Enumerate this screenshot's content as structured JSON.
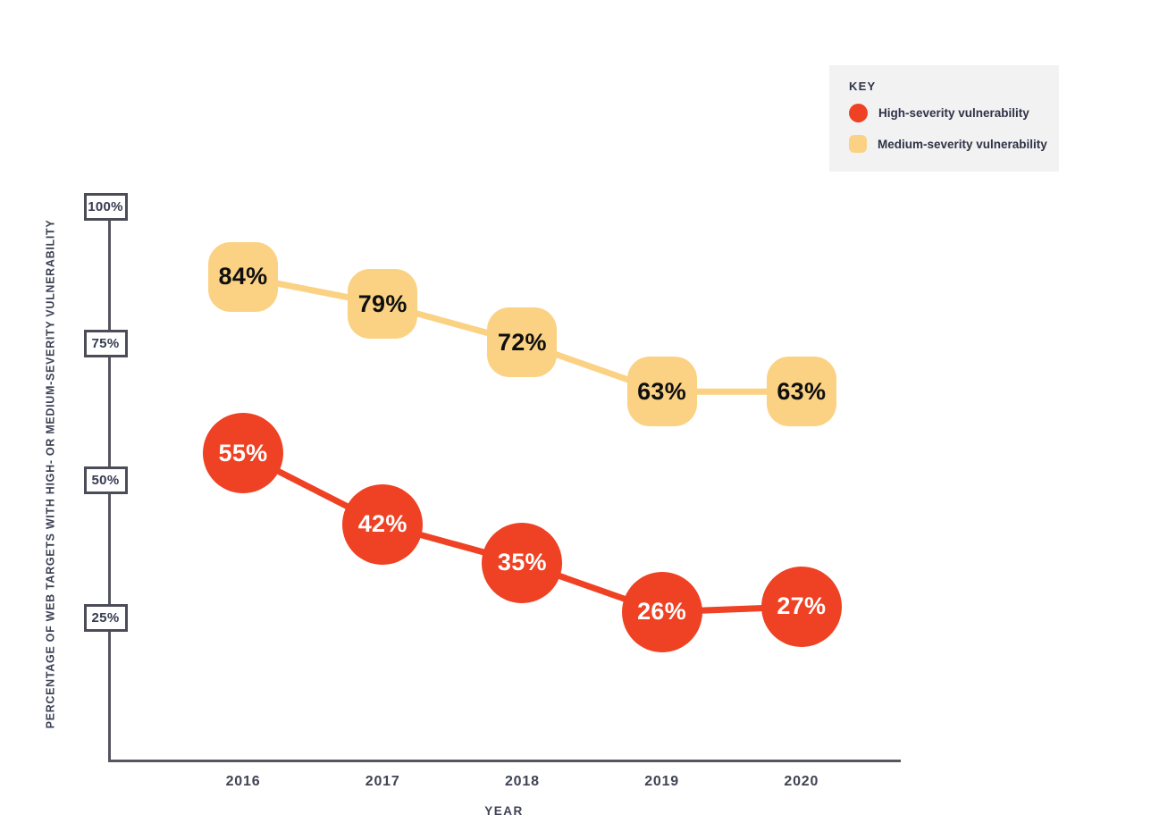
{
  "chart_data": {
    "type": "line",
    "categories": [
      "2016",
      "2017",
      "2018",
      "2019",
      "2020"
    ],
    "series": [
      {
        "id": "medium",
        "name": "Medium-severity vulnerability",
        "values": [
          84,
          79,
          72,
          63,
          63
        ],
        "color": "#fbd284",
        "marker": "rounded-square",
        "label_color": "#0f0f0f"
      },
      {
        "id": "high",
        "name": "High-severity vulnerability",
        "values": [
          55,
          42,
          35,
          26,
          27
        ],
        "color": "#ef4123",
        "marker": "circle",
        "label_color": "#ffffff"
      }
    ],
    "value_suffix": "%",
    "xlabel": "YEAR",
    "ylabel": "PERCENTAGE OF WEB TARGETS WITH HIGH- OR MEDIUM-SEVERITY VULNERABILITY",
    "yticks": [
      {
        "label": "100%",
        "value": 100
      },
      {
        "label": "75%",
        "value": 75
      },
      {
        "label": "50%",
        "value": 50
      },
      {
        "label": "25%",
        "value": 25
      }
    ],
    "ylim": [
      0,
      105
    ],
    "grid": false,
    "legend_position": "top-right"
  },
  "legend": {
    "title": "KEY",
    "items": [
      {
        "label": "High-severity vulnerability",
        "color": "#ef4123",
        "shape": "circle"
      },
      {
        "label": "Medium-severity vulnerability",
        "color": "#fbd284",
        "shape": "rounded-square"
      }
    ]
  },
  "colors": {
    "axis": "#55565f",
    "tick_box_border": "#4b4c57",
    "text_dark": "#363b4f",
    "legend_bg": "#f2f2f3",
    "high_severity": "#ef4123",
    "medium_severity": "#fbd284"
  }
}
